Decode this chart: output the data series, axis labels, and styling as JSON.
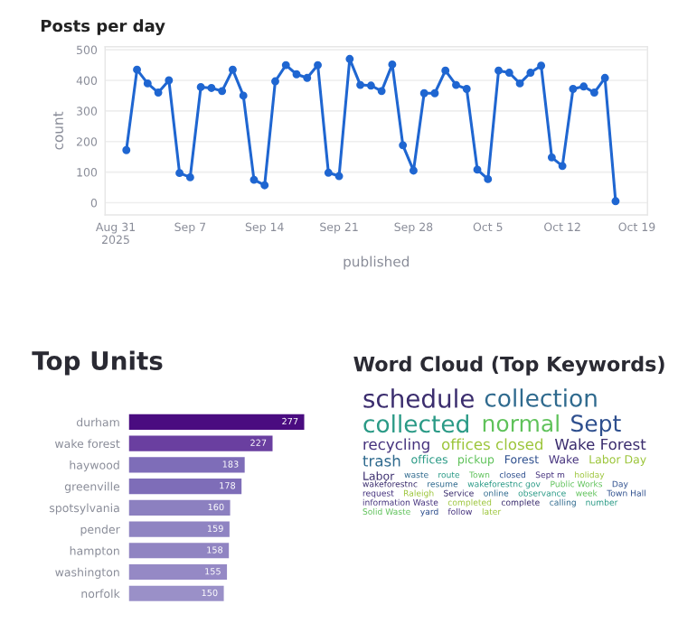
{
  "chart_data": [
    {
      "type": "line",
      "title": "Posts per day",
      "xlabel": "published",
      "ylabel": "count",
      "color": "#1f66d1",
      "marker": "circle",
      "line_style": "solid",
      "grid": "y",
      "legend": false,
      "x": [
        "2025-09-01",
        "2025-09-02",
        "2025-09-03",
        "2025-09-04",
        "2025-09-05",
        "2025-09-06",
        "2025-09-07",
        "2025-09-08",
        "2025-09-09",
        "2025-09-10",
        "2025-09-11",
        "2025-09-12",
        "2025-09-13",
        "2025-09-14",
        "2025-09-15",
        "2025-09-16",
        "2025-09-17",
        "2025-09-18",
        "2025-09-19",
        "2025-09-20",
        "2025-09-21",
        "2025-09-22",
        "2025-09-23",
        "2025-09-24",
        "2025-09-25",
        "2025-09-26",
        "2025-09-27",
        "2025-09-28",
        "2025-09-29",
        "2025-09-30",
        "2025-10-01",
        "2025-10-02",
        "2025-10-03",
        "2025-10-04",
        "2025-10-05",
        "2025-10-06",
        "2025-10-07",
        "2025-10-08",
        "2025-10-09",
        "2025-10-10",
        "2025-10-11",
        "2025-10-12",
        "2025-10-13",
        "2025-10-14",
        "2025-10-15",
        "2025-10-16",
        "2025-10-17"
      ],
      "values": [
        172,
        435,
        390,
        360,
        400,
        97,
        83,
        378,
        375,
        365,
        435,
        350,
        75,
        57,
        397,
        450,
        420,
        408,
        450,
        98,
        87,
        470,
        385,
        383,
        365,
        452,
        188,
        105,
        358,
        358,
        432,
        385,
        372,
        108,
        77,
        432,
        425,
        390,
        425,
        448,
        148,
        120,
        372,
        380,
        360,
        408,
        5
      ],
      "xlim": [
        "2025-08-30",
        "2025-10-20"
      ],
      "xticks": [
        {
          "value": "2025-08-31",
          "label": "Aug 31\n2025"
        },
        {
          "value": "2025-09-07",
          "label": "Sep 7"
        },
        {
          "value": "2025-09-14",
          "label": "Sep 14"
        },
        {
          "value": "2025-09-21",
          "label": "Sep 21"
        },
        {
          "value": "2025-09-28",
          "label": "Sep 28"
        },
        {
          "value": "2025-10-05",
          "label": "Oct 5"
        },
        {
          "value": "2025-10-12",
          "label": "Oct 12"
        },
        {
          "value": "2025-10-19",
          "label": "Oct 19"
        }
      ],
      "ylim": [
        -40,
        510
      ],
      "yticks": [
        0,
        100,
        200,
        300,
        400,
        500
      ]
    },
    {
      "type": "bar",
      "orientation": "horizontal",
      "title": "Top Units",
      "data_labels": true,
      "categories": [
        "durham",
        "wake forest",
        "haywood",
        "greenville",
        "spotsylvania",
        "pender",
        "hampton",
        "washington",
        "norfolk"
      ],
      "values": [
        277,
        227,
        183,
        178,
        160,
        159,
        158,
        155,
        150
      ],
      "colors": [
        "#4a0c80",
        "#6a3fa0",
        "#7e6db8",
        "#7e6db8",
        "#8c80c0",
        "#8f84c2",
        "#9084c2",
        "#9589c5",
        "#9a90c8"
      ]
    },
    {
      "type": "other",
      "title": "Word Cloud (Top Keywords)",
      "annotations": [
        "schedule",
        "collection",
        "collected",
        "normal",
        "Sept",
        "recycling",
        "offices closed",
        "Wake Forest",
        "trash",
        "offices",
        "pickup",
        "Forest",
        "Wake",
        "Labor Day",
        "Labor",
        "waste",
        "route",
        "Town",
        "closed",
        "Sept m",
        "holiday",
        "wakeforestnc",
        "resume",
        "wakeforestnc gov",
        "Public Works",
        "Day",
        "request",
        "Raleigh",
        "Service",
        "online",
        "observance",
        "week",
        "Town Hall",
        "information Waste",
        "completed",
        "complete",
        "calling",
        "number",
        "Solid Waste",
        "yard",
        "follow",
        "later"
      ]
    }
  ]
}
